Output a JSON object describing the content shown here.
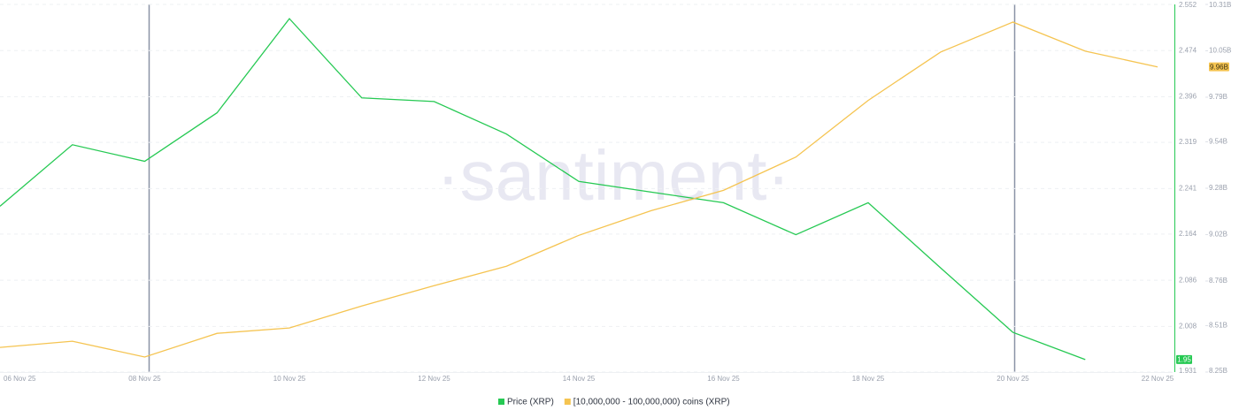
{
  "chart_data": {
    "type": "line",
    "watermark": "·santiment·",
    "categories": [
      "06 Nov 25",
      null,
      "08 Nov 25",
      null,
      "10 Nov 25",
      null,
      "12 Nov 25",
      null,
      "14 Nov 25",
      null,
      "16 Nov 25",
      null,
      "18 Nov 25",
      null,
      "20 Nov 25",
      null,
      "22 Nov 25"
    ],
    "series": [
      {
        "name": "Price (XRP)",
        "color": "#26c953",
        "last_label": "1.95",
        "values": [
          2.211,
          2.315,
          2.287,
          2.369,
          2.528,
          2.394,
          2.388,
          2.333,
          2.253,
          2.235,
          2.217,
          2.163,
          2.217,
          2.107,
          1.998,
          1.952,
          null
        ]
      },
      {
        "name": "[10,000,000 - 100,000,000) coins (XRP)",
        "color": "#f5c451",
        "axis": "y2",
        "last_label": "9.96B",
        "values": [
          8388000000,
          8423000000,
          8334000000,
          8467000000,
          8497000000,
          8620000000,
          8734000000,
          8843000000,
          9016000000,
          9154000000,
          9268000000,
          9455000000,
          9772000000,
          10043000000,
          10211000000,
          10048000000,
          9960000000
        ]
      }
    ],
    "ylim": [
      1.931,
      2.552
    ],
    "yticks": [
      2.552,
      2.474,
      2.396,
      2.319,
      2.241,
      2.164,
      2.086,
      2.008,
      1.931
    ],
    "y2lim": [
      8250000000,
      10310000000
    ],
    "y2ticks": [
      {
        "value": 10310000000,
        "label": "10.31B"
      },
      {
        "value": 10050000000,
        "label": "10.05B"
      },
      {
        "value": 9790000000,
        "label": "9.79B"
      },
      {
        "value": 9540000000,
        "label": "9.54B"
      },
      {
        "value": 9280000000,
        "label": "9.28B"
      },
      {
        "value": 9020000000,
        "label": "9.02B"
      },
      {
        "value": 8760000000,
        "label": "8.76B"
      },
      {
        "value": 8510000000,
        "label": "8.51B"
      },
      {
        "value": 8250000000,
        "label": "8.25B"
      }
    ],
    "grid": true
  }
}
